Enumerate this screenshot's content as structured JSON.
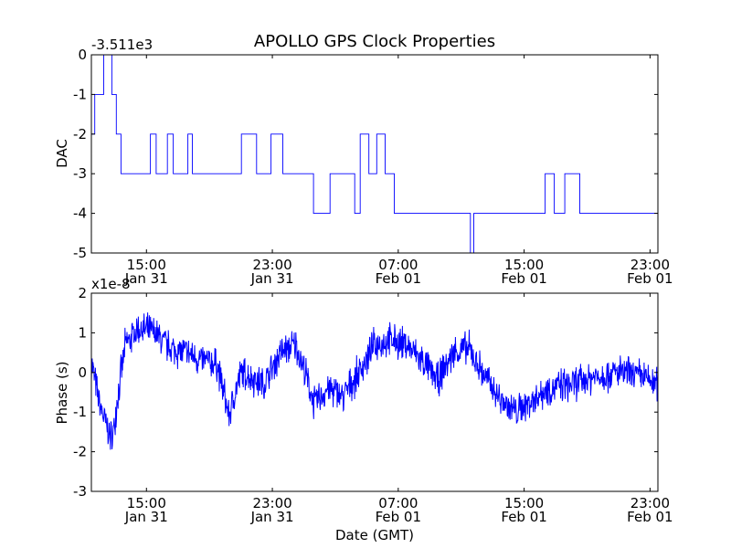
{
  "title": "APOLLO GPS Clock Properties",
  "colors": {
    "line": "#0000ff",
    "axes": "#000000",
    "background": "#ffffff"
  },
  "chart_data": [
    {
      "type": "line",
      "panel": "top",
      "ylabel": "DAC",
      "offset_text": "-3.511e3",
      "ylim": [
        -5,
        0
      ],
      "yticks": [
        0,
        -1,
        -2,
        -3,
        -4,
        -5
      ],
      "ytick_labels": [
        "0",
        "-1",
        "-2",
        "-3",
        "-4",
        "-5"
      ],
      "xlim": [
        "2010-01-31 11:30",
        "2010-02-01 23:30"
      ],
      "xticks": [
        {
          "t": "2010-01-31 15:00",
          "label": [
            "15:00",
            "Jan 31"
          ]
        },
        {
          "t": "2010-01-31 23:00",
          "label": [
            "23:00",
            "Jan 31"
          ]
        },
        {
          "t": "2010-02-01 07:00",
          "label": [
            "07:00",
            "Feb 01"
          ]
        },
        {
          "t": "2010-02-01 15:00",
          "label": [
            "15:00",
            "Feb 01"
          ]
        },
        {
          "t": "2010-02-01 23:00",
          "label": [
            "23:00",
            "Feb 01"
          ]
        }
      ],
      "series": [
        {
          "x": [
            "2010-01-31 11:30",
            "2010-01-31 11:43",
            "2010-01-31 12:17",
            "2010-01-31 12:48",
            "2010-01-31 13:05",
            "2010-01-31 13:23",
            "2010-01-31 15:15",
            "2010-01-31 15:37",
            "2010-01-31 16:20",
            "2010-01-31 16:42",
            "2010-01-31 17:38",
            "2010-01-31 17:55",
            "2010-01-31 21:02",
            "2010-01-31 22:00",
            "2010-01-31 22:55",
            "2010-01-31 23:40",
            "2010-02-01 01:37",
            "2010-02-01 02:40",
            "2010-02-01 04:14",
            "2010-02-01 04:35",
            "2010-02-01 05:08",
            "2010-02-01 05:38",
            "2010-02-01 06:10",
            "2010-02-01 06:45",
            "2010-02-01 11:35",
            "2010-02-01 11:48",
            "2010-02-01 16:20",
            "2010-02-01 16:55",
            "2010-02-01 17:35",
            "2010-02-01 18:32",
            "2010-02-01 23:45"
          ],
          "y": [
            -2,
            -1,
            0,
            -1,
            -2,
            -3,
            -2,
            -3,
            -2,
            -3,
            -2,
            -3,
            -2,
            -3,
            -2,
            -3,
            -4,
            -3,
            -4,
            -2,
            -3,
            -2,
            -3,
            -4,
            -5,
            -4,
            -3,
            -4,
            -3,
            -4,
            -4
          ]
        }
      ]
    },
    {
      "type": "line",
      "panel": "bottom",
      "ylabel": "Phase (s)",
      "xlabel": "Date (GMT)",
      "offset_text": "x1e-8",
      "ylim": [
        -3,
        2
      ],
      "yticks": [
        2,
        1,
        0,
        -1,
        -2,
        -3
      ],
      "ytick_labels": [
        "2",
        "1",
        "0",
        "-1",
        "-2",
        "-3"
      ],
      "xlim": [
        "2010-01-31 11:30",
        "2010-02-01 23:30"
      ],
      "xticks": [
        {
          "t": "2010-01-31 15:00",
          "label": [
            "15:00",
            "Jan 31"
          ]
        },
        {
          "t": "2010-01-31 23:00",
          "label": [
            "23:00",
            "Jan 31"
          ]
        },
        {
          "t": "2010-02-01 07:00",
          "label": [
            "07:00",
            "Feb 01"
          ]
        },
        {
          "t": "2010-02-01 15:00",
          "label": [
            "15:00",
            "Feb 01"
          ]
        },
        {
          "t": "2010-02-01 23:00",
          "label": [
            "23:00",
            "Feb 01"
          ]
        }
      ],
      "series": [
        {
          "x": [
            "2010-01-31 11:30",
            "2010-01-31 12:00",
            "2010-01-31 12:30",
            "2010-01-31 12:50",
            "2010-01-31 13:10",
            "2010-01-31 13:40",
            "2010-01-31 14:30",
            "2010-01-31 15:30",
            "2010-01-31 16:30",
            "2010-01-31 17:30",
            "2010-01-31 18:30",
            "2010-01-31 19:30",
            "2010-01-31 20:15",
            "2010-01-31 21:00",
            "2010-01-31 22:30",
            "2010-01-31 23:30",
            "2010-02-01 00:30",
            "2010-02-01 01:00",
            "2010-02-01 01:40",
            "2010-02-01 02:30",
            "2010-02-01 03:30",
            "2010-02-01 04:30",
            "2010-02-01 05:30",
            "2010-02-01 06:30",
            "2010-02-01 07:30",
            "2010-02-01 08:30",
            "2010-02-01 09:30",
            "2010-02-01 10:30",
            "2010-02-01 11:30",
            "2010-02-01 12:30",
            "2010-02-01 13:30",
            "2010-02-01 14:30",
            "2010-02-01 15:30",
            "2010-02-01 16:30",
            "2010-02-01 18:00",
            "2010-02-01 19:30",
            "2010-02-01 21:00",
            "2010-02-01 22:30",
            "2010-02-01 23:30"
          ],
          "y": [
            0.3,
            -0.8,
            -1.4,
            -1.7,
            -0.6,
            0.7,
            1.1,
            1.0,
            0.6,
            0.5,
            0.3,
            0.2,
            -1.1,
            0.0,
            -0.3,
            0.5,
            0.7,
            0.1,
            -0.8,
            -0.4,
            -0.6,
            0.0,
            0.7,
            0.8,
            0.7,
            0.3,
            -0.2,
            0.5,
            0.6,
            -0.1,
            -0.7,
            -1.0,
            -0.7,
            -0.4,
            -0.3,
            -0.1,
            0.0,
            -0.1,
            -0.3
          ],
          "noise_amplitude": 0.35
        }
      ]
    }
  ]
}
